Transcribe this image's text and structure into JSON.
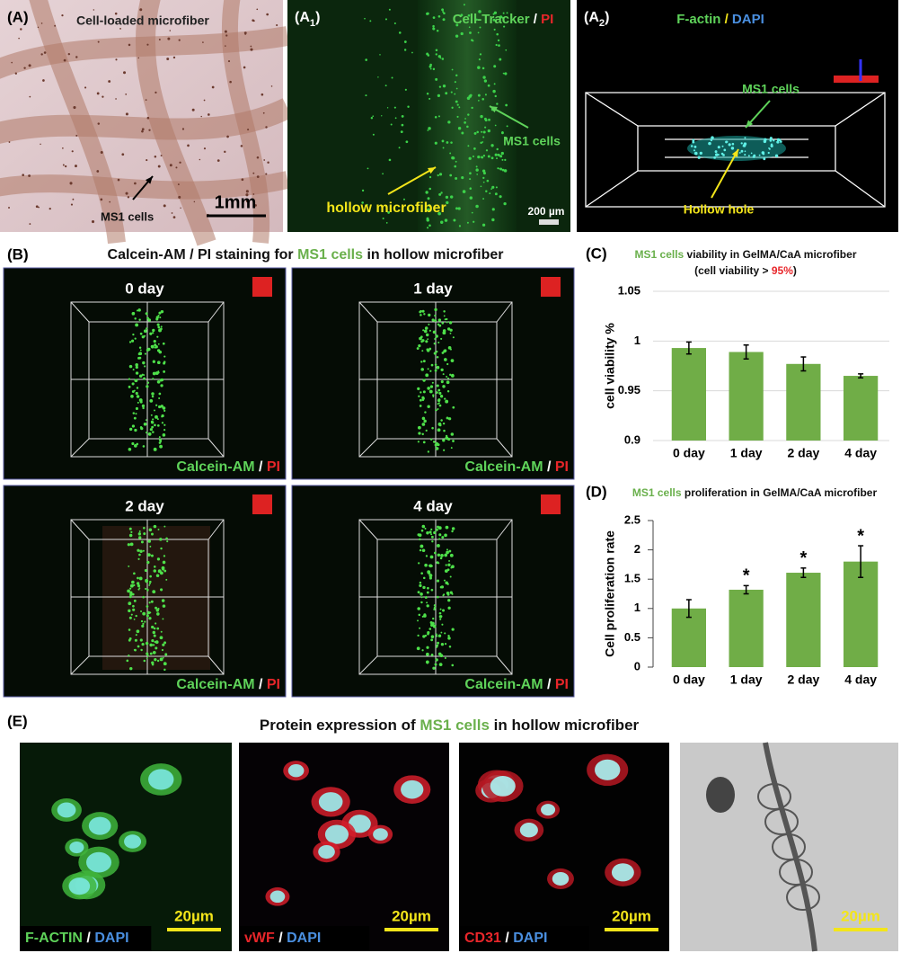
{
  "panels": {
    "a": {
      "label": "(A)",
      "title": "Cell-loaded microfiber",
      "annotation": "MS1 cells",
      "scale": "1mm"
    },
    "a1": {
      "label": [
        "(A",
        "1",
        ")"
      ],
      "title": [
        "Cell-Tracker",
        " / ",
        "PI"
      ],
      "annotations": [
        "MS1 cells",
        "hollow microfiber"
      ],
      "scale": "200 µm"
    },
    "a2": {
      "label": [
        "(A",
        "2",
        ")"
      ],
      "title": [
        "F-actin",
        " / ",
        "DAPI"
      ],
      "annotations": [
        "MS1 cells",
        "Hollow hole"
      ]
    },
    "b": {
      "label": "(B)",
      "title": [
        "Calcein-AM / PI staining for ",
        "MS1 cells",
        " in hollow microfiber"
      ],
      "images": [
        {
          "day": "0 day",
          "stain": [
            "Calcein-AM",
            " / ",
            "PI"
          ]
        },
        {
          "day": "1 day",
          "stain": [
            "Calcein-AM",
            " / ",
            "PI"
          ]
        },
        {
          "day": "2 day",
          "stain": [
            "Calcein-AM",
            " / ",
            "PI"
          ]
        },
        {
          "day": "4 day",
          "stain": [
            "Calcein-AM",
            " / ",
            "PI"
          ]
        }
      ]
    },
    "e": {
      "label": "(E)",
      "title": [
        "Protein expression of ",
        "MS1 cells",
        " in hollow microfiber"
      ],
      "images": [
        {
          "stain": [
            "F-ACTIN",
            " / ",
            "DAPI"
          ],
          "scale": "20µm"
        },
        {
          "stain": [
            "vWF",
            " / ",
            "DAPI"
          ],
          "scale": "20µm"
        },
        {
          "stain": [
            "CD31",
            " / ",
            "DAPI"
          ],
          "scale": "20µm"
        },
        {
          "scale": "20µm"
        }
      ]
    }
  },
  "chart_data": [
    {
      "type": "bar",
      "panel_label": "(C)",
      "title": [
        "MS1 cells",
        " viability in GelMA/CaA microfiber"
      ],
      "subtitle": [
        "(cell viability > ",
        "95%",
        ")"
      ],
      "y_label": "cell viability %",
      "categories": [
        "0 day",
        "1 day",
        "2 day",
        "4 day"
      ],
      "values": [
        0.993,
        0.989,
        0.977,
        0.965
      ],
      "errors": [
        0.006,
        0.007,
        0.007,
        0.002
      ],
      "color": "#70ad47",
      "ylim": [
        0.9,
        1.05
      ],
      "yticks": [
        0.9,
        0.95,
        1,
        1.05
      ],
      "grid": true
    },
    {
      "type": "bar",
      "panel_label": "(D)",
      "title": [
        "MS1 cells",
        " proliferation in GelMA/CaA microfiber"
      ],
      "y_label": "Cell proliferation rate",
      "categories": [
        "0 day",
        "1 day",
        "2 day",
        "4 day"
      ],
      "values": [
        1.0,
        1.32,
        1.61,
        1.8
      ],
      "errors": [
        0.15,
        0.07,
        0.08,
        0.27
      ],
      "annotations": [
        null,
        "*",
        "*",
        "*"
      ],
      "color": "#70ad47",
      "ylim": [
        0,
        2.5
      ],
      "yticks": [
        0,
        0.5,
        1,
        1.5,
        2,
        2.5
      ],
      "grid": false
    }
  ]
}
